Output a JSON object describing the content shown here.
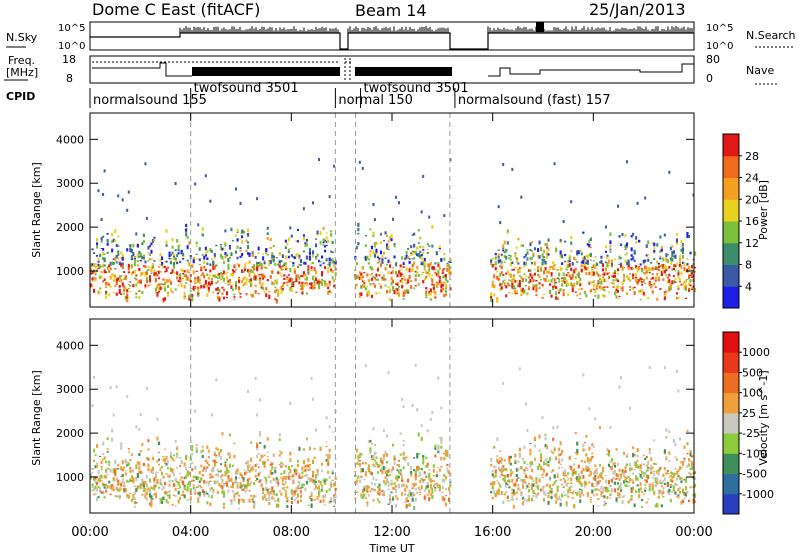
{
  "header": {
    "station": "Dome C East (fitACF)",
    "beam": "Beam 14",
    "date": "25/Jan/2013"
  },
  "top_panels": {
    "nsky_label": "N.Sky",
    "nsky_ticks": [
      "10^5",
      "10^0"
    ],
    "nsearch_label": "N.Search",
    "nsearch_ticks": [
      "10^5",
      "10^0"
    ],
    "freq_label_line1": "Freq.",
    "freq_label_line2": "[MHz]",
    "freq_ticks": [
      "18",
      "8"
    ],
    "nave_label": "Nave",
    "nave_ticks": [
      "80",
      "0"
    ],
    "cpid_label": "CPID"
  },
  "cpid_segments": [
    {
      "start_h": 0.0,
      "end_h": 4.0,
      "label": "normalsound 155",
      "row": 2
    },
    {
      "start_h": 4.0,
      "end_h": 9.75,
      "label": "twofsound 3501",
      "row": 1
    },
    {
      "start_h": 9.75,
      "end_h": 10.75,
      "label": "normal 150",
      "row": 2
    },
    {
      "start_h": 10.75,
      "end_h": 14.5,
      "label": "twofsound 3501",
      "row": 1
    },
    {
      "start_h": 14.5,
      "end_h": 24.0,
      "label": "normalsound (fast) 157",
      "row": 2
    }
  ],
  "x_axis": {
    "label": "Time UT",
    "ticks": [
      "00:00",
      "04:00",
      "08:00",
      "12:00",
      "16:00",
      "20:00",
      "00:00"
    ]
  },
  "chart_data": [
    {
      "type": "heatmap",
      "ylabel": "Slant Range [km]",
      "yticks": [
        "1000",
        "2000",
        "3000",
        "4000"
      ],
      "colorbar_label": "Power [dB]",
      "colorbar_ticks": [
        "4",
        "8",
        "12",
        "16",
        "20",
        "24",
        "28"
      ],
      "colorbar_colors": [
        "#1e1ee6",
        "#3a5aa8",
        "#3d8c6a",
        "#7cbf3a",
        "#e8d21e",
        "#f5a020",
        "#ef6a1c",
        "#e01818"
      ],
      "xlim": [
        0,
        24
      ],
      "ylim": [
        180,
        4600
      ],
      "data_ranges_h": [
        [
          0,
          3.3
        ],
        [
          3.3,
          9.75
        ],
        [
          10.5,
          14.3
        ],
        [
          15.9,
          24
        ]
      ]
    },
    {
      "type": "heatmap",
      "ylabel": "Slant Range [km]",
      "yticks": [
        "1000",
        "2000",
        "3000",
        "4000"
      ],
      "colorbar_label": "Velocity [m s^-1]",
      "colorbar_ticks": [
        "1000",
        "500",
        "100",
        "25",
        "-25",
        "-100",
        "-500",
        "-1000"
      ],
      "colorbar_colors": [
        "#2a3fbf",
        "#2f6f9f",
        "#3e8f5a",
        "#8ccc3c",
        "#c8c8c0",
        "#f0a03a",
        "#ec6e22",
        "#e83a1a",
        "#e01010"
      ],
      "xlim": [
        0,
        24
      ],
      "ylim": [
        180,
        4600
      ],
      "data_ranges_h": [
        [
          0,
          3.3
        ],
        [
          3.3,
          9.75
        ],
        [
          10.5,
          14.3
        ],
        [
          15.9,
          24
        ]
      ]
    }
  ]
}
